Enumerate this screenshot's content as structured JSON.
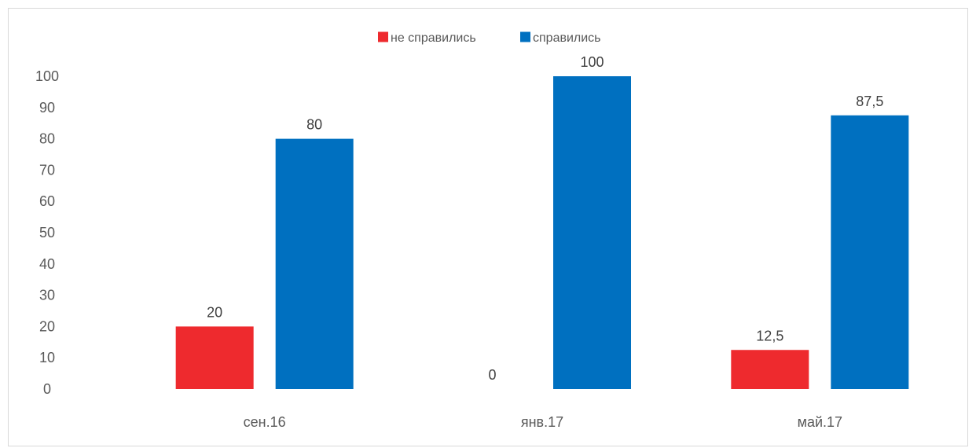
{
  "chart_data": {
    "type": "bar",
    "categories": [
      "сен.16",
      "янв.17",
      "май.17"
    ],
    "series": [
      {
        "name": "не справились",
        "values": [
          20,
          0,
          12.5
        ],
        "labels": [
          "20",
          "0",
          "12,5"
        ],
        "color": "#ee2a2e"
      },
      {
        "name": "справились",
        "values": [
          80,
          100,
          87.5
        ],
        "labels": [
          "80",
          "100",
          "87,5"
        ],
        "color": "#0070c0"
      }
    ],
    "yticks": [
      0,
      10,
      20,
      30,
      40,
      50,
      60,
      70,
      80,
      90,
      100
    ],
    "ylim": [
      0,
      100
    ],
    "title": "",
    "xlabel": "",
    "ylabel": "",
    "legend_position": "top-center",
    "grid": false
  }
}
